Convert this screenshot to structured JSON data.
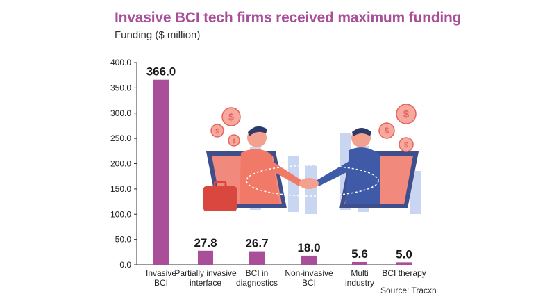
{
  "title": "Invasive BCI tech firms received maximum funding",
  "subtitle": "Funding ($ million)",
  "source": "Source: Tracxn",
  "colors": {
    "title": "#a94f9a",
    "bar": "#a94f9a",
    "axis": "#333333"
  },
  "chart_data": {
    "type": "bar",
    "categories": [
      [
        "Invasive",
        "BCI"
      ],
      [
        "Partially invasive",
        "interface"
      ],
      [
        "BCI in",
        "diagnostics"
      ],
      [
        "Non-invasive",
        "BCI"
      ],
      [
        "Multi",
        "industry"
      ],
      [
        "BCI therapy"
      ]
    ],
    "values": [
      366.0,
      27.8,
      26.7,
      18.0,
      5.6,
      5.0
    ],
    "value_labels": [
      "366.0",
      "27.8",
      "26.7",
      "18.0",
      "5.6",
      "5.0"
    ],
    "yticks": [
      "0.0",
      "50.0",
      "100.0",
      "150.0",
      "200.0",
      "250.0",
      "300.0",
      "350.0",
      "400.0"
    ],
    "ylim": [
      0,
      400
    ],
    "grid": false
  }
}
